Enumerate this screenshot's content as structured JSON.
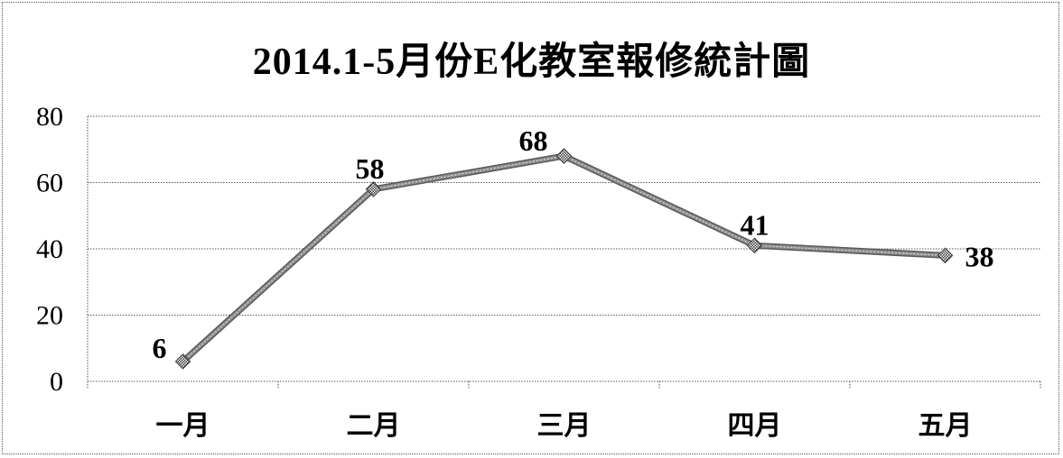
{
  "chart_data": {
    "type": "line",
    "title": "2014.1-5月份E化教室報修統計圖",
    "categories": [
      "一月",
      "二月",
      "三月",
      "四月",
      "五月"
    ],
    "series": [
      {
        "values": [
          6,
          58,
          68,
          41,
          38
        ]
      }
    ],
    "data_labels": [
      "6",
      "58",
      "68",
      "41",
      "38"
    ],
    "yticks": [
      0,
      20,
      40,
      60,
      80
    ],
    "ylim": [
      0,
      80
    ],
    "xlabel": "",
    "ylabel": "",
    "grid": true,
    "gridline_style": "dotted",
    "line_color": "#8c8c8c",
    "marker": "diamond",
    "legend": "none"
  }
}
